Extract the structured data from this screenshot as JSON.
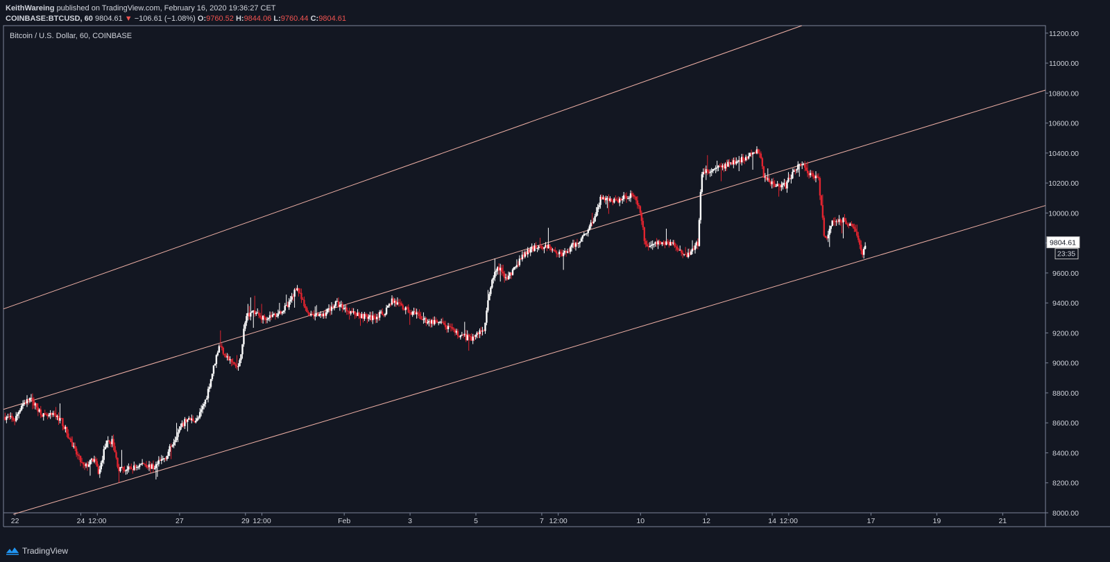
{
  "header": {
    "author": "KeithWareing",
    "published_text": "published on TradingView.com, February 16, 2020 19:36:27 CET",
    "symbol": "COINBASE:BTCUSD, 60",
    "last": "9804.61",
    "change_arrow": "▼",
    "change": "−106.61 (−1.08%)",
    "open_label": "O:",
    "open": "9760.52",
    "high_label": "H:",
    "high": "9844.06",
    "low_label": "L:",
    "low": "9760.44",
    "close_label": "C:",
    "close": "9804.61"
  },
  "footer": {
    "brand": "TradingView",
    "logo_icon": "tradingview-logo-icon"
  },
  "colors": {
    "background": "#131722",
    "up": "#ffffff",
    "down": "#e0242f",
    "channel": "#f3b3a8",
    "text": "#d1d4dc",
    "border": "#7c8599"
  },
  "chart_data": {
    "type": "candlestick",
    "title": "Bitcoin / U.S. Dollar, 60, COINBASE",
    "ylim": [
      8000,
      11250
    ],
    "y_ticks": [
      "8000.00",
      "8200.00",
      "8400.00",
      "8600.00",
      "8800.00",
      "9000.00",
      "9200.00",
      "9400.00",
      "9600.00",
      "9800.00",
      "10000.00",
      "10200.00",
      "10400.00",
      "10600.00",
      "10800.00",
      "11000.00",
      "11200.00"
    ],
    "x_ticks": [
      "22",
      "24",
      "12:00",
      "27",
      "29",
      "12:00",
      "Feb",
      "3",
      "5",
      "7",
      "12:00",
      "10",
      "12",
      "14",
      "12:00",
      "17",
      "19",
      "21"
    ],
    "x_tick_days": [
      22,
      24,
      24.5,
      27,
      29,
      29.5,
      32,
      34,
      36,
      38,
      38.5,
      41,
      43,
      45,
      45.5,
      48,
      50,
      52
    ],
    "x_range_days": [
      21.65,
      53.3
    ],
    "last_price": "9804.61",
    "countdown": "23:35",
    "price_path": [
      [
        21.7,
        8640
      ],
      [
        22.0,
        8620
      ],
      [
        22.2,
        8720
      ],
      [
        22.45,
        8760
      ],
      [
        22.9,
        8640
      ],
      [
        23.2,
        8650
      ],
      [
        23.4,
        8620
      ],
      [
        23.8,
        8420
      ],
      [
        24.1,
        8300
      ],
      [
        24.4,
        8360
      ],
      [
        24.55,
        8260
      ],
      [
        24.75,
        8460
      ],
      [
        24.95,
        8480
      ],
      [
        25.15,
        8290
      ],
      [
        25.5,
        8290
      ],
      [
        25.9,
        8330
      ],
      [
        26.2,
        8300
      ],
      [
        26.6,
        8380
      ],
      [
        26.9,
        8520
      ],
      [
        27.2,
        8620
      ],
      [
        27.55,
        8620
      ],
      [
        27.8,
        8760
      ],
      [
        28.2,
        9120
      ],
      [
        28.5,
        9020
      ],
      [
        28.8,
        8960
      ],
      [
        29.0,
        9300
      ],
      [
        29.2,
        9350
      ],
      [
        29.5,
        9300
      ],
      [
        29.9,
        9320
      ],
      [
        30.3,
        9380
      ],
      [
        30.55,
        9510
      ],
      [
        30.85,
        9340
      ],
      [
        31.3,
        9310
      ],
      [
        31.75,
        9400
      ],
      [
        32.3,
        9330
      ],
      [
        32.8,
        9300
      ],
      [
        33.2,
        9330
      ],
      [
        33.45,
        9420
      ],
      [
        33.75,
        9370
      ],
      [
        34.1,
        9330
      ],
      [
        34.5,
        9280
      ],
      [
        34.95,
        9260
      ],
      [
        35.45,
        9190
      ],
      [
        35.85,
        9160
      ],
      [
        36.25,
        9230
      ],
      [
        36.45,
        9520
      ],
      [
        36.65,
        9640
      ],
      [
        36.95,
        9560
      ],
      [
        37.45,
        9720
      ],
      [
        37.85,
        9780
      ],
      [
        38.3,
        9770
      ],
      [
        38.65,
        9720
      ],
      [
        39.2,
        9830
      ],
      [
        39.55,
        9940
      ],
      [
        39.8,
        10100
      ],
      [
        40.3,
        10080
      ],
      [
        40.75,
        10130
      ],
      [
        41.0,
        10000
      ],
      [
        41.15,
        9780
      ],
      [
        41.6,
        9800
      ],
      [
        41.95,
        9800
      ],
      [
        42.4,
        9720
      ],
      [
        42.75,
        9800
      ],
      [
        42.85,
        10270
      ],
      [
        43.3,
        10290
      ],
      [
        43.75,
        10340
      ],
      [
        44.15,
        10360
      ],
      [
        44.6,
        10420
      ],
      [
        44.75,
        10240
      ],
      [
        45.1,
        10190
      ],
      [
        45.4,
        10180
      ],
      [
        45.7,
        10300
      ],
      [
        45.9,
        10330
      ],
      [
        46.15,
        10260
      ],
      [
        46.4,
        10240
      ],
      [
        46.6,
        9810
      ],
      [
        46.8,
        9930
      ],
      [
        47.05,
        9960
      ],
      [
        47.3,
        9940
      ],
      [
        47.55,
        9880
      ],
      [
        47.75,
        9730
      ],
      [
        47.85,
        9800
      ]
    ]
  }
}
